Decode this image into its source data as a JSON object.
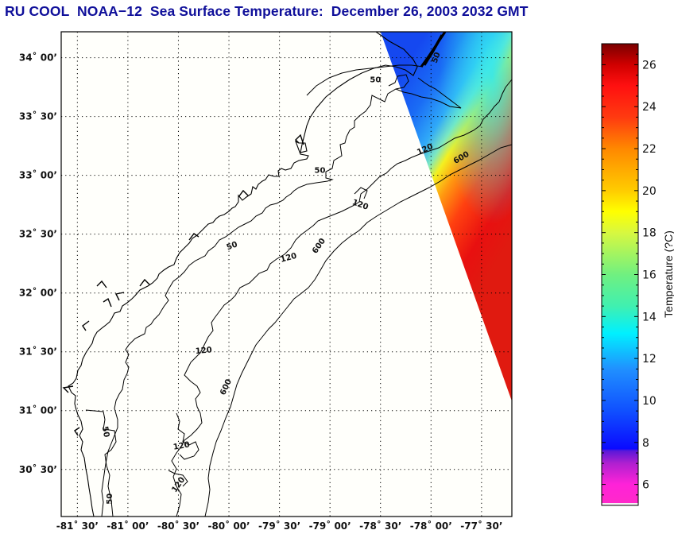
{
  "title": "RU COOL  NOAA−12  Sea Surface Temperature:  December 26, 2003 2032 GMT",
  "map": {
    "projection": "lat-lon",
    "lon_range": [
      -81.66,
      -77.2
    ],
    "lat_range": [
      30.1,
      34.22
    ],
    "lat_ticks": [
      {
        "value": 34.0,
        "label": "34˚ 00’"
      },
      {
        "value": 33.5,
        "label": "33˚ 30’"
      },
      {
        "value": 33.0,
        "label": "33˚ 00’"
      },
      {
        "value": 32.5,
        "label": "32˚ 30’"
      },
      {
        "value": 32.0,
        "label": "32˚ 00’"
      },
      {
        "value": 31.5,
        "label": "31˚ 30’"
      },
      {
        "value": 31.0,
        "label": "31˚ 00’"
      },
      {
        "value": 30.5,
        "label": "30˚ 30’"
      }
    ],
    "lon_ticks": [
      {
        "value": -81.5,
        "label": "-81˚ 30’"
      },
      {
        "value": -81.0,
        "label": "-81˚ 00’"
      },
      {
        "value": -80.5,
        "label": "-80˚ 30’"
      },
      {
        "value": -80.0,
        "label": "-80˚ 00’"
      },
      {
        "value": -79.5,
        "label": "-79˚ 30’"
      },
      {
        "value": -79.0,
        "label": "-79˚ 00’"
      },
      {
        "value": -78.5,
        "label": "-78˚ 30’"
      },
      {
        "value": -78.0,
        "label": "-78˚ 00’"
      },
      {
        "value": -77.5,
        "label": "-77˚ 30’"
      }
    ],
    "grid": true,
    "background_color": "#fffffb",
    "contours": [
      {
        "depth": "50",
        "labels": [
          {
            "text": "50",
            "lon": -78.55,
            "lat": 33.81,
            "rotate": 0
          },
          {
            "text": "50",
            "lon": -79.1,
            "lat": 33.04,
            "rotate": 0
          },
          {
            "text": "50",
            "lon": -79.97,
            "lat": 32.4,
            "rotate": -20
          },
          {
            "text": "50",
            "lon": -81.22,
            "lat": 30.82,
            "rotate": 80
          },
          {
            "text": "50",
            "lon": -81.18,
            "lat": 30.25,
            "rotate": -90
          },
          {
            "text": "50",
            "lon": -77.95,
            "lat": 34.0,
            "rotate": -70
          }
        ]
      },
      {
        "depth": "120",
        "labels": [
          {
            "text": "120",
            "lon": -78.7,
            "lat": 32.75,
            "rotate": 20
          },
          {
            "text": "120",
            "lon": -79.41,
            "lat": 32.3,
            "rotate": -15
          },
          {
            "text": "120",
            "lon": -80.25,
            "lat": 31.51,
            "rotate": -5
          },
          {
            "text": "120",
            "lon": -80.47,
            "lat": 30.7,
            "rotate": -10
          },
          {
            "text": "120",
            "lon": -80.5,
            "lat": 30.37,
            "rotate": -55
          },
          {
            "text": "120",
            "lon": -78.06,
            "lat": 33.22,
            "rotate": -25
          }
        ]
      },
      {
        "depth": "600",
        "labels": [
          {
            "text": "600",
            "lon": -79.11,
            "lat": 32.4,
            "rotate": -55
          },
          {
            "text": "600",
            "lon": -80.03,
            "lat": 31.2,
            "rotate": -65
          },
          {
            "text": "600",
            "lon": -77.7,
            "lat": 33.15,
            "rotate": -30
          }
        ]
      }
    ],
    "sst_swath": {
      "description": "satellite swath covering upper-right (offshore) region",
      "edge_west": [
        [
          -78.5,
          34.22
        ],
        [
          -77.2,
          31.08
        ]
      ]
    }
  },
  "colorbar": {
    "label": "Temperature (?C)",
    "min": 5,
    "max": 27,
    "ticks": [
      6,
      8,
      10,
      12,
      14,
      16,
      18,
      20,
      22,
      24,
      26
    ],
    "colormap": [
      {
        "value": 5.0,
        "color": "#ff2ac8"
      },
      {
        "value": 6.0,
        "color": "#ff22d8"
      },
      {
        "value": 7.0,
        "color": "#b020d0"
      },
      {
        "value": 7.6,
        "color": "#5a18d8"
      },
      {
        "value": 7.7,
        "color": "#0a0aff"
      },
      {
        "value": 9.5,
        "color": "#1050ff"
      },
      {
        "value": 11.5,
        "color": "#2090ff"
      },
      {
        "value": 13.2,
        "color": "#00f0ff"
      },
      {
        "value": 14.5,
        "color": "#40f0b0"
      },
      {
        "value": 16.0,
        "color": "#70f080"
      },
      {
        "value": 18.0,
        "color": "#d8f840"
      },
      {
        "value": 19.0,
        "color": "#ffff00"
      },
      {
        "value": 20.0,
        "color": "#ffcc00"
      },
      {
        "value": 22.0,
        "color": "#ff8800"
      },
      {
        "value": 23.5,
        "color": "#ff3a10"
      },
      {
        "value": 25.0,
        "color": "#ff1010"
      },
      {
        "value": 26.0,
        "color": "#d00000"
      },
      {
        "value": 27.0,
        "color": "#7a0000"
      }
    ]
  }
}
